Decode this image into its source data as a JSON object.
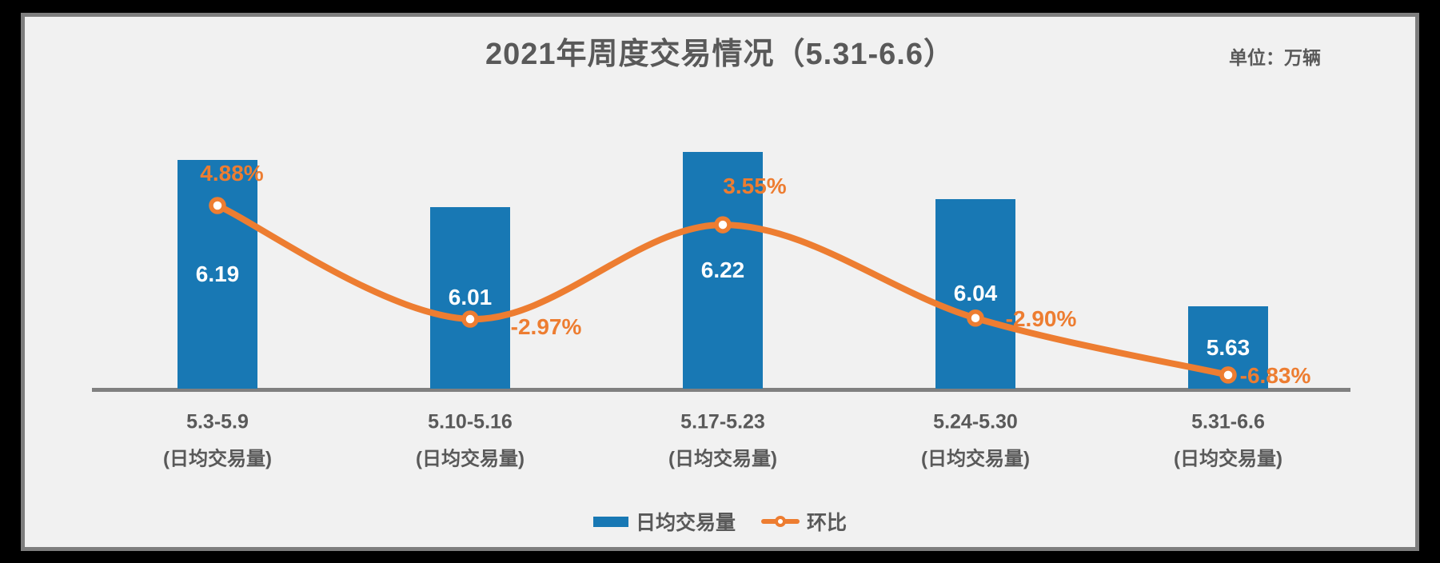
{
  "title": "2021年周度交易情况（5.31-6.6）",
  "unit_label": "单位：万辆",
  "legend": {
    "bar": "日均交易量",
    "line": "环比"
  },
  "colors": {
    "bar": "#1878b4",
    "line": "#ed7d31",
    "marker_fill": "#ffffff",
    "axis": "#808080",
    "background": "#f1f1f1",
    "frame_border": "#7e7e7e",
    "outer_frame": "#000000",
    "text": "#595959",
    "bar_value_text": "#ffffff"
  },
  "chart_data": {
    "type": "bar",
    "subtype": "bar-line-combo",
    "title": "2021年周度交易情况（5.31-6.6）",
    "unit": "万辆",
    "categories": [
      "5.3-5.9",
      "5.10-5.16",
      "5.17-5.23",
      "5.24-5.30",
      "5.31-6.6"
    ],
    "category_sublabel": "(日均交易量)",
    "series": [
      {
        "name": "日均交易量",
        "type": "bar",
        "values": [
          6.19,
          6.01,
          6.22,
          6.04,
          5.63
        ],
        "labels": [
          "6.19",
          "6.01",
          "6.22",
          "6.04",
          "5.63"
        ]
      },
      {
        "name": "环比",
        "type": "line",
        "values": [
          4.88,
          -2.97,
          3.55,
          -2.9,
          -6.83
        ],
        "labels": [
          "4.88%",
          "-2.97%",
          "3.55%",
          "-2.90%",
          "-6.83%"
        ]
      }
    ],
    "legend_position": "bottom",
    "grid": false,
    "value_axis_visible": false
  }
}
